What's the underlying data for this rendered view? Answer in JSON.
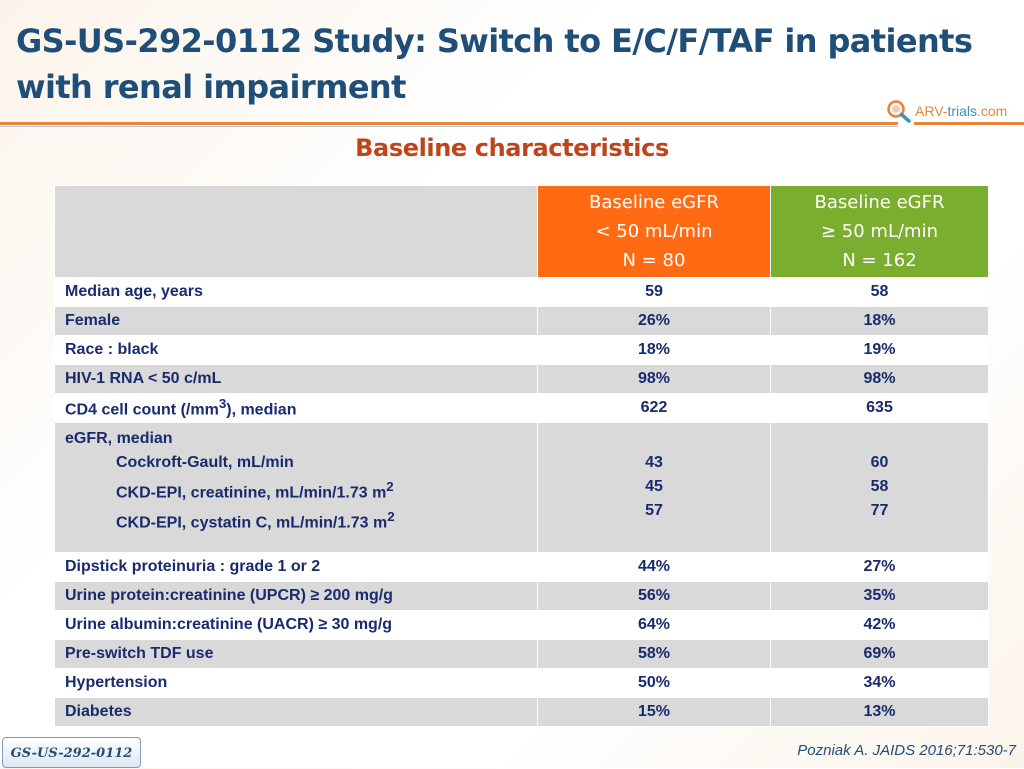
{
  "title": {
    "line1": "GS-US-292-0112 Study: Switch to E/C/F/TAF in patients",
    "line2": "with renal impairment"
  },
  "logo": {
    "part1": "ARV-",
    "part2": "trials",
    "part3": ".com",
    "icon": "magnifier-icon"
  },
  "subtitle": "Baseline characteristics",
  "table": {
    "headers": {
      "col1": {
        "line1": "Baseline eGFR",
        "line2": "< 50 mL/min",
        "line3": "N = 80",
        "color": "#ff6a13"
      },
      "col2": {
        "line1": "Baseline eGFR",
        "line2": "≥ 50 mL/min",
        "line3": "N = 162",
        "color": "#7bae2e"
      }
    },
    "rows": [
      {
        "label": "Median age, years",
        "v1": "59",
        "v2": "58"
      },
      {
        "label": "Female",
        "v1": "26%",
        "v2": "18%"
      },
      {
        "label": "Race : black",
        "v1": "18%",
        "v2": "19%"
      },
      {
        "label": "HIV-1 RNA < 50 c/mL",
        "v1": "98%",
        "v2": "98%"
      },
      {
        "label_pre": "CD4 cell count (/mm",
        "label_sup": "3",
        "label_post": "), median",
        "v1": "622",
        "v2": "635"
      },
      {
        "label": "eGFR, median",
        "sub": [
          {
            "label": "Cockroft-Gault, mL/min",
            "v1": "43",
            "v2": "60"
          },
          {
            "label": "CKD-EPI, creatinine, mL/min/1.73 m",
            "sup": "2",
            "v1": "45",
            "v2": "58"
          },
          {
            "label": "CKD-EPI, cystatin C, mL/min/1.73 m",
            "sup": "2",
            "v1": "57",
            "v2": "77"
          }
        ]
      },
      {
        "label": "Dipstick proteinuria : grade 1 or 2",
        "v1": "44%",
        "v2": "27%"
      },
      {
        "label": "Urine protein:creatinine (UPCR) ≥ 200 mg/g",
        "v1": "56%",
        "v2": "35%"
      },
      {
        "label": "Urine albumin:creatinine (UACR) ≥ 30 mg/g",
        "v1": "64%",
        "v2": "42%"
      },
      {
        "label": "Pre-switch TDF use",
        "v1": "58%",
        "v2": "69%"
      },
      {
        "label": "Hypertension",
        "v1": "50%",
        "v2": "34%"
      },
      {
        "label": "Diabetes",
        "v1": "15%",
        "v2": "13%"
      }
    ]
  },
  "footer": {
    "badge": "GS-US-292-0112",
    "citation": "Pozniak A. JAIDS 2016;71:530-7"
  }
}
